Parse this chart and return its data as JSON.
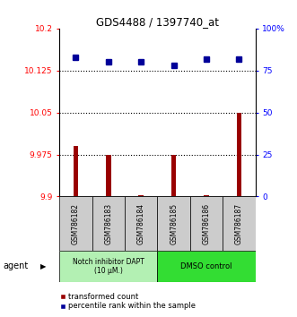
{
  "title": "GDS4488 / 1397740_at",
  "samples": [
    "GSM786182",
    "GSM786183",
    "GSM786184",
    "GSM786185",
    "GSM786186",
    "GSM786187"
  ],
  "red_values": [
    9.99,
    9.975,
    9.902,
    9.975,
    9.902,
    10.05
  ],
  "blue_values": [
    83,
    80,
    80,
    78,
    82,
    82
  ],
  "ylim_left": [
    9.9,
    10.2
  ],
  "ylim_right": [
    0,
    100
  ],
  "yticks_left": [
    9.9,
    9.975,
    10.05,
    10.125,
    10.2
  ],
  "yticks_right": [
    0,
    25,
    50,
    75,
    100
  ],
  "ytick_labels_left": [
    "9.9",
    "9.975",
    "10.05",
    "10.125",
    "10.2"
  ],
  "ytick_labels_right": [
    "0",
    "25",
    "50",
    "75",
    "100%"
  ],
  "hlines": [
    9.975,
    10.05,
    10.125
  ],
  "group1_label": "Notch inhibitor DAPT\n(10 μM.)",
  "group2_label": "DMSO control",
  "group1_color": "#b3f0b3",
  "group2_color": "#33dd33",
  "group1_samples": [
    0,
    1,
    2
  ],
  "group2_samples": [
    3,
    4,
    5
  ],
  "bar_color": "#990000",
  "dot_color": "#000099",
  "legend_red": "transformed count",
  "legend_blue": "percentile rank within the sample",
  "agent_label": "agent"
}
